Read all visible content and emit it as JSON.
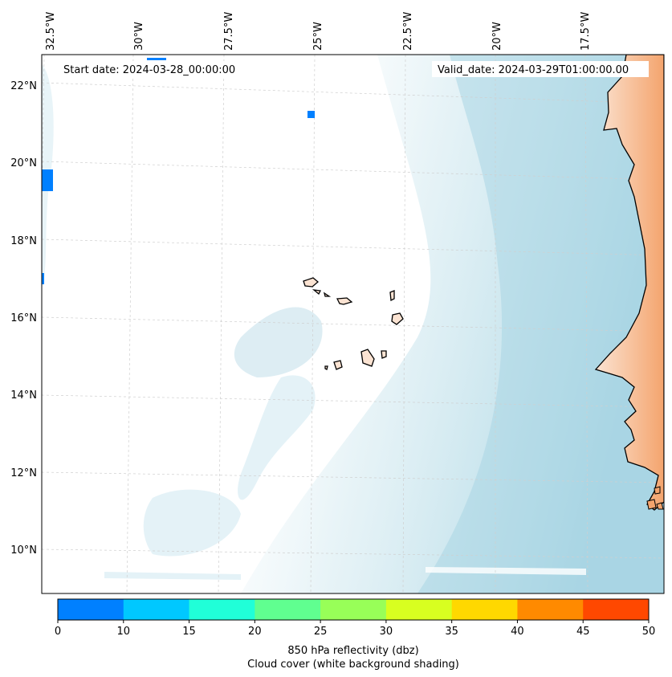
{
  "header": {
    "start_date": "Start date: 2024-03-28_00:00:00",
    "valid_date": "Valid_date: 2024-03-29T01:00:00.00"
  },
  "map": {
    "lon_labels": [
      "32.5°W",
      "30°W",
      "27.5°W",
      "25°W",
      "22.5°W",
      "20°W",
      "17.5°W"
    ],
    "lat_labels": [
      "22°N",
      "20°N",
      "18°N",
      "16°N",
      "14°N",
      "12°N",
      "10°N"
    ],
    "colors": {
      "land": "#f6b58a",
      "cloud": "#bcdde8",
      "coast": "#000000",
      "grid": "#cccccc"
    }
  },
  "colorbar": {
    "ticks": [
      "0",
      "10",
      "15",
      "20",
      "25",
      "30",
      "35",
      "40",
      "45",
      "50"
    ],
    "colors": [
      "#0080ff",
      "#00c8ff",
      "#20ffd8",
      "#60ff90",
      "#98ff58",
      "#d8ff20",
      "#ffd800",
      "#ff8a00",
      "#ff4800"
    ],
    "label_line1": "850 hPa reflectivity (dbz)",
    "label_line2": "Cloud cover (white background shading)"
  }
}
